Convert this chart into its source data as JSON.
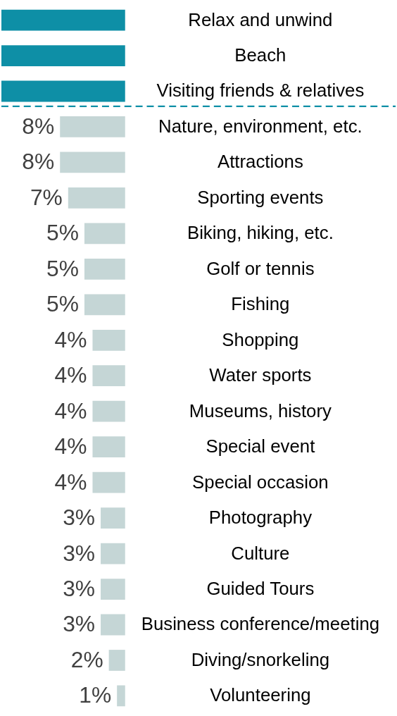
{
  "chart_data": {
    "type": "bar",
    "orientation": "horizontal",
    "categories": [
      "Relax and unwind",
      "Beach",
      "Visiting friends & relatives",
      "Nature, environment, etc.",
      "Attractions",
      "Sporting events",
      "Biking, hiking, etc.",
      "Golf or tennis",
      "Fishing",
      "Shopping",
      "Water sports",
      "Museums, history",
      "Special event",
      "Special occasion",
      "Photography",
      "Culture",
      "Guided Tours",
      "Business conference/meeting",
      "Diving/snorkeling",
      "Volunteering"
    ],
    "values": [
      15.2,
      15.2,
      15.2,
      8,
      8,
      7,
      5,
      5,
      5,
      4,
      4,
      4,
      4,
      4,
      3,
      3,
      3,
      3,
      2,
      1
    ],
    "colors": [
      "#0e8fa6",
      "#0e8fa6",
      "#0e8fa6",
      "#c5d6d6",
      "#c5d6d6",
      "#c5d6d6",
      "#c5d6d6",
      "#c5d6d6",
      "#c5d6d6",
      "#c5d6d6",
      "#c5d6d6",
      "#c5d6d6",
      "#c5d6d6",
      "#c5d6d6",
      "#c5d6d6",
      "#c5d6d6",
      "#c5d6d6",
      "#c5d6d6",
      "#c5d6d6",
      "#c5d6d6"
    ],
    "value_labels": [
      null,
      null,
      null,
      "8%",
      "8%",
      "7%",
      "5%",
      "5%",
      "5%",
      "4%",
      "4%",
      "4%",
      "4%",
      "4%",
      "3%",
      "3%",
      "3%",
      "3%",
      "2%",
      "1%"
    ],
    "xlim": [
      15.2,
      0
    ],
    "ref_lines": [
      {
        "axis": "y",
        "value": "Visiting friends & relatives",
        "color": "#0e8fa6",
        "line_style": "dashed"
      }
    ]
  }
}
